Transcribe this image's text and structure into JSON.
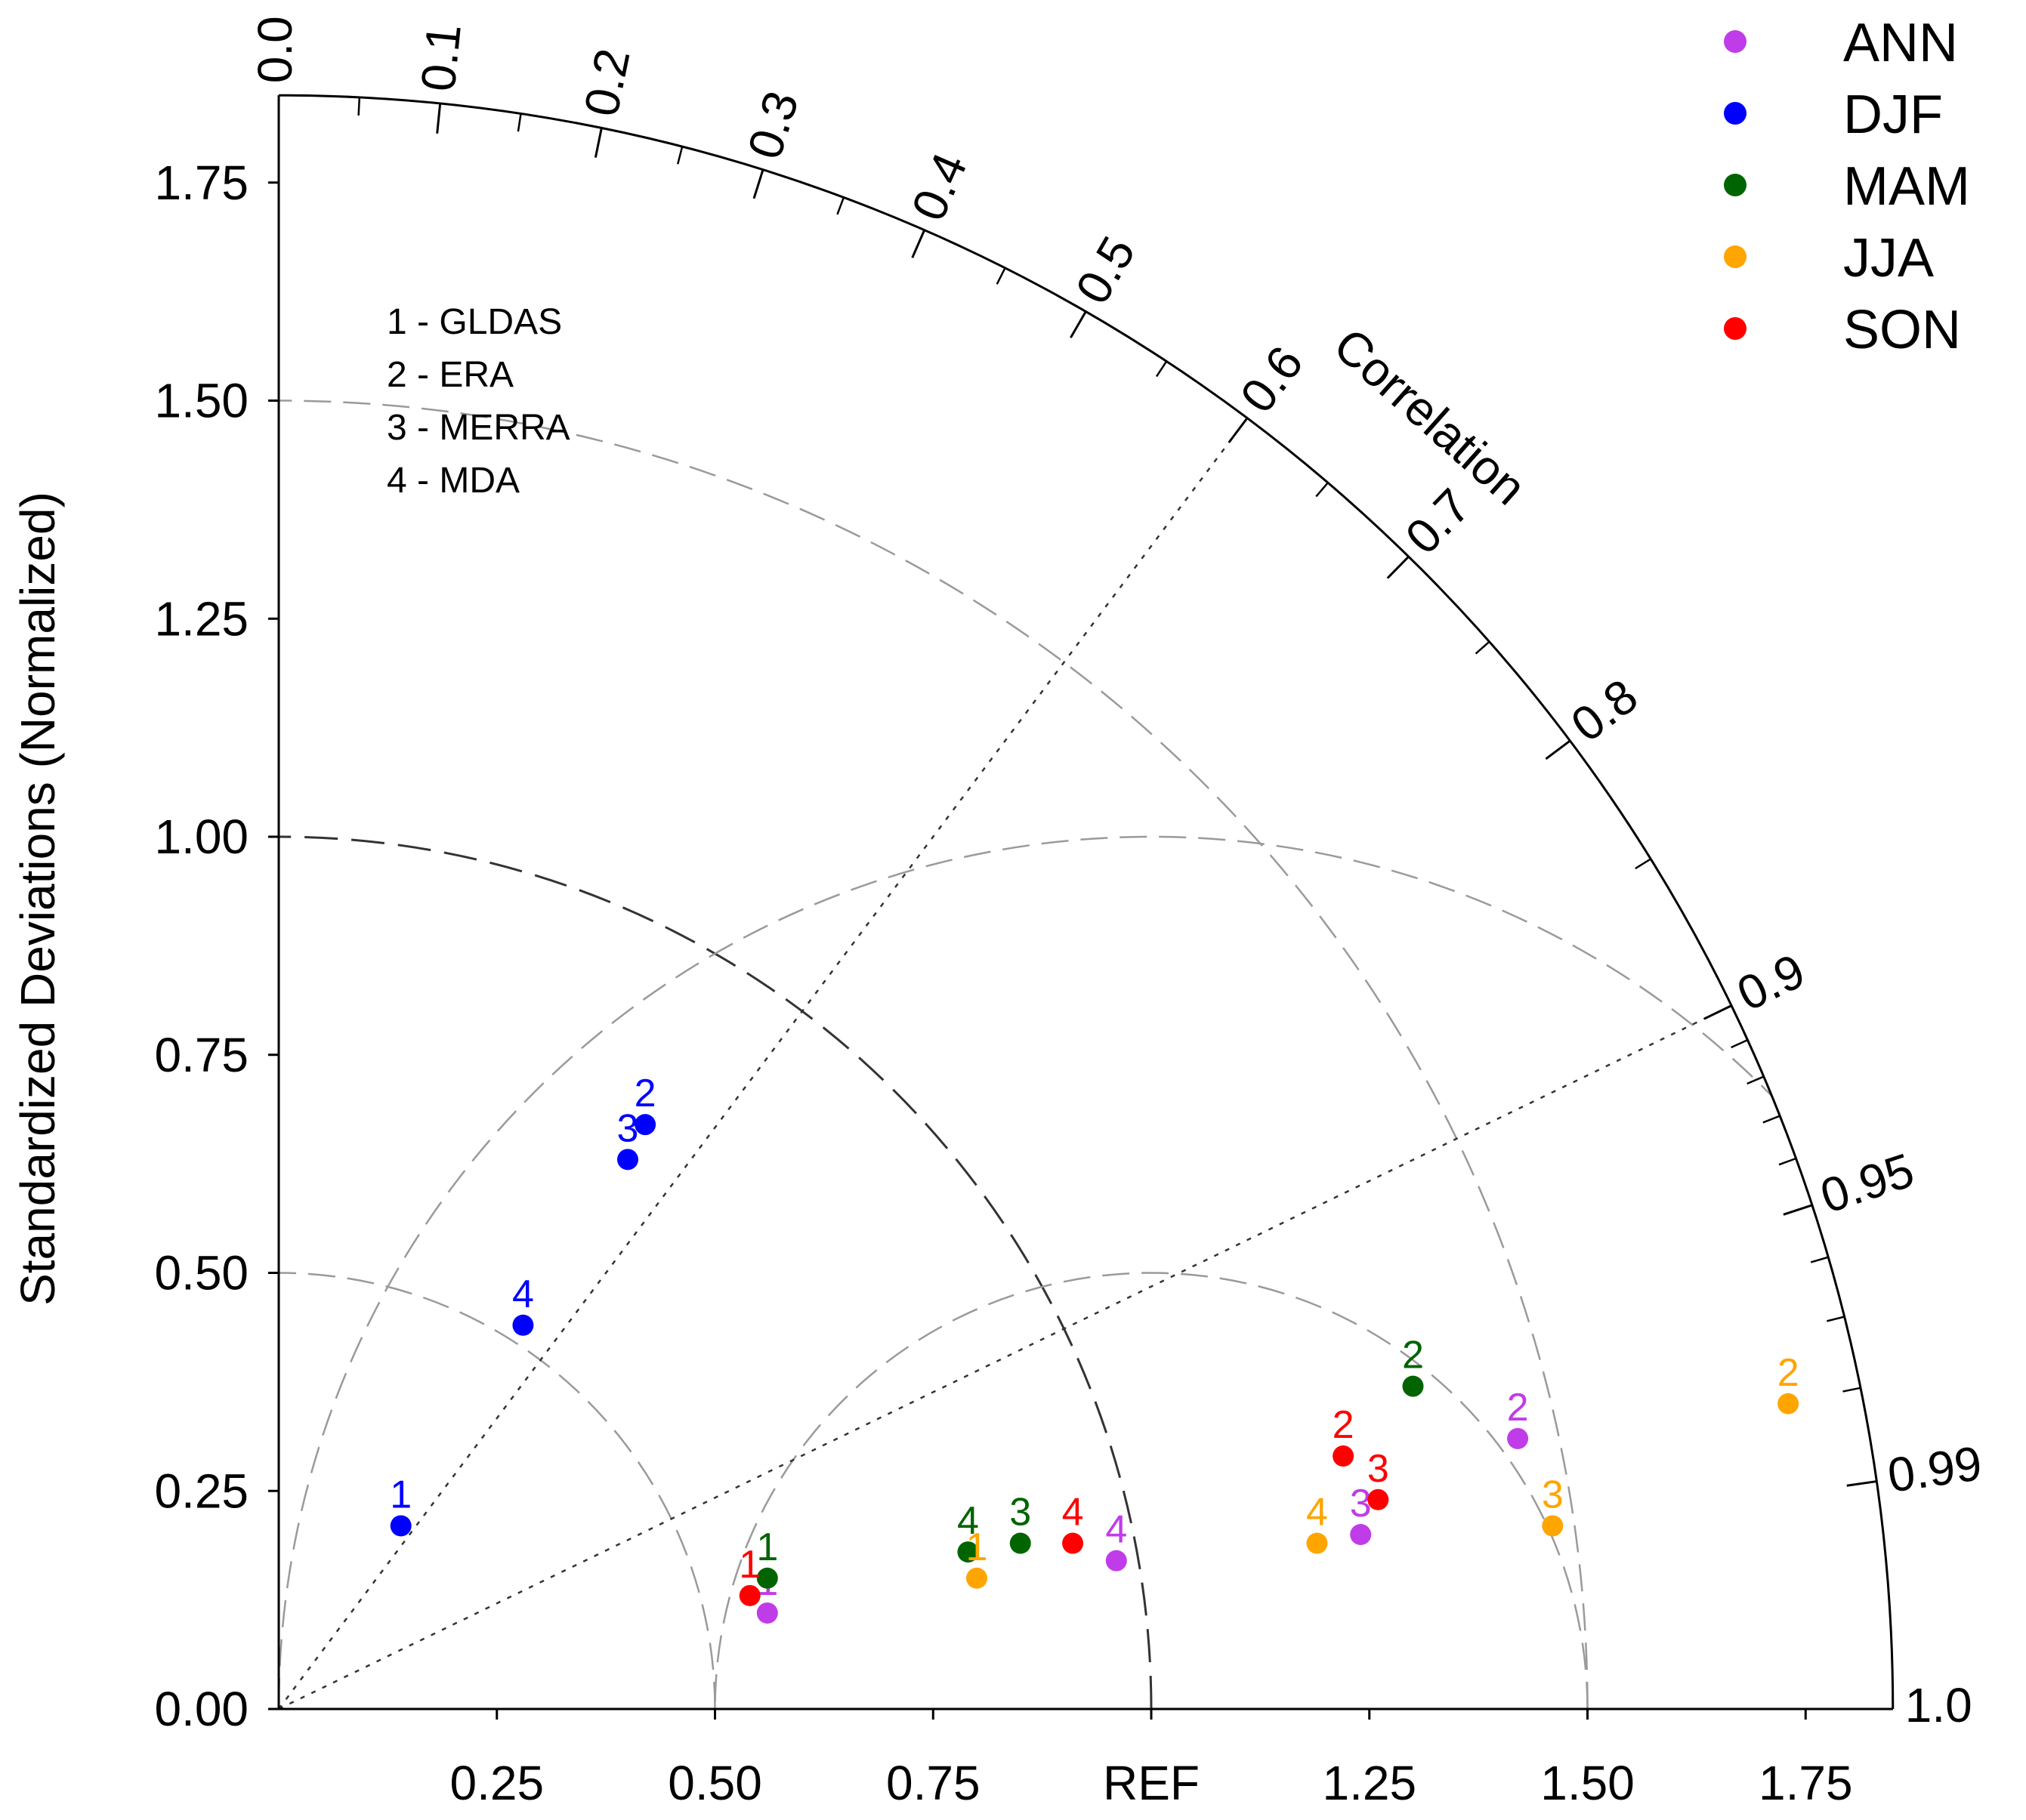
{
  "chart_data": {
    "type": "scatter",
    "subtype": "taylor-diagram",
    "ylabel": "Standardized Deviations (Normalized)",
    "correlation_label": "Correlation",
    "ref_label": "REF",
    "std_max": 1.85,
    "y_ticks": [
      "0.00",
      "0.25",
      "0.50",
      "0.75",
      "1.00",
      "1.25",
      "1.50",
      "1.75"
    ],
    "x_ticks": [
      "0.25",
      "0.50",
      "0.75",
      "1.25",
      "1.50",
      "1.75"
    ],
    "correlation_ticks": [
      "0.0",
      "0.1",
      "0.2",
      "0.3",
      "0.4",
      "0.5",
      "0.6",
      "0.7",
      "0.8",
      "0.9",
      "0.95",
      "0.99",
      "1.0"
    ],
    "dotted_lines_correlation": [
      0.6,
      0.9
    ],
    "reference_std": 1.0,
    "rms_contours": [
      0.5,
      1.0
    ],
    "legend": [
      {
        "name": "ANN",
        "color": "#c03ce8"
      },
      {
        "name": "DJF",
        "color": "#0000ff"
      },
      {
        "name": "MAM",
        "color": "#006400"
      },
      {
        "name": "JJA",
        "color": "#ffa500"
      },
      {
        "name": "SON",
        "color": "#ff0000"
      }
    ],
    "notes": [
      "1 - GLDAS",
      "2 - ERA",
      "3 - MERRA",
      "4 - MDA"
    ],
    "series": [
      {
        "name": "ANN",
        "color": "#c03ce8",
        "points": [
          {
            "label": "1",
            "x": 0.56,
            "y": 0.11
          },
          {
            "label": "2",
            "x": 1.42,
            "y": 0.31
          },
          {
            "label": "3",
            "x": 1.24,
            "y": 0.2
          },
          {
            "label": "4",
            "x": 0.96,
            "y": 0.17
          }
        ]
      },
      {
        "name": "DJF",
        "color": "#0000ff",
        "points": [
          {
            "label": "1",
            "x": 0.14,
            "y": 0.21
          },
          {
            "label": "2",
            "x": 0.42,
            "y": 0.67
          },
          {
            "label": "3",
            "x": 0.4,
            "y": 0.63
          },
          {
            "label": "4",
            "x": 0.28,
            "y": 0.44
          }
        ]
      },
      {
        "name": "MAM",
        "color": "#006400",
        "points": [
          {
            "label": "1",
            "x": 0.56,
            "y": 0.15
          },
          {
            "label": "2",
            "x": 1.3,
            "y": 0.37
          },
          {
            "label": "3",
            "x": 0.85,
            "y": 0.19
          },
          {
            "label": "4",
            "x": 0.79,
            "y": 0.18
          }
        ]
      },
      {
        "name": "JJA",
        "color": "#ffa500",
        "points": [
          {
            "label": "1",
            "x": 0.8,
            "y": 0.15
          },
          {
            "label": "2",
            "x": 1.73,
            "y": 0.35
          },
          {
            "label": "3",
            "x": 1.46,
            "y": 0.21
          },
          {
            "label": "4",
            "x": 1.19,
            "y": 0.19
          }
        ]
      },
      {
        "name": "SON",
        "color": "#ff0000",
        "points": [
          {
            "label": "1",
            "x": 0.54,
            "y": 0.13
          },
          {
            "label": "2",
            "x": 1.22,
            "y": 0.29
          },
          {
            "label": "3",
            "x": 1.26,
            "y": 0.24
          },
          {
            "label": "4",
            "x": 0.91,
            "y": 0.19
          }
        ]
      }
    ]
  }
}
